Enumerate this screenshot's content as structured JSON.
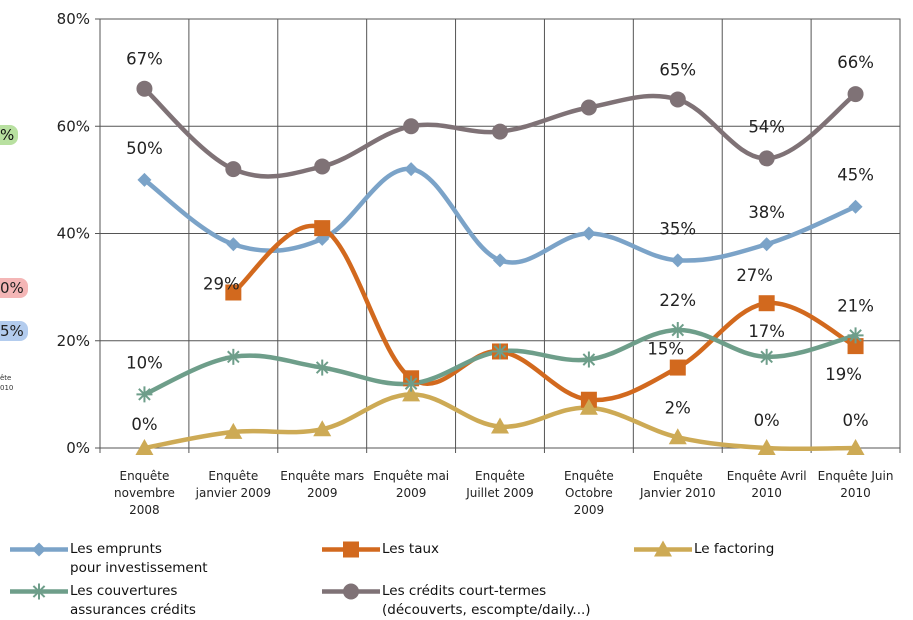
{
  "chart_data": {
    "type": "line",
    "categories": [
      [
        "Enquête",
        "novembre",
        "2008"
      ],
      [
        "Enquête",
        "janvier 2009"
      ],
      [
        "Enquête mars",
        "2009"
      ],
      [
        "Enquête mai",
        "2009"
      ],
      [
        "Enquête",
        "Juillet 2009"
      ],
      [
        "Enquête",
        "Octobre",
        "2009"
      ],
      [
        "Enquête",
        "Janvier 2010"
      ],
      [
        "Enquête Avril",
        "2010"
      ],
      [
        "Enquête Juin",
        "2010"
      ]
    ],
    "ylim": [
      0,
      80
    ],
    "yticks": [
      0,
      20,
      40,
      60,
      80
    ],
    "ytick_labels": [
      "0%",
      "20%",
      "40%",
      "60%",
      "80%"
    ],
    "grid": true,
    "smooth": true,
    "series": [
      {
        "name": [
          "Les emprunts",
          "pour investissement"
        ],
        "color": "#7BA3C8",
        "marker": "diamond",
        "values": [
          50,
          38,
          39,
          52,
          35,
          40,
          35,
          38,
          45
        ],
        "labels": [
          "50%",
          "",
          "",
          "",
          "",
          "",
          "35%",
          "38%",
          "45%"
        ]
      },
      {
        "name": [
          "Les taux"
        ],
        "color": "#D2691E",
        "marker": "square",
        "values": [
          null,
          29,
          41,
          13,
          18,
          9,
          15,
          27,
          19
        ],
        "labels": [
          "",
          "29%",
          "",
          "",
          "",
          "",
          "15%",
          "27%",
          "19%"
        ]
      },
      {
        "name": [
          "Le factoring"
        ],
        "color": "#CDAA55",
        "marker": "triangle",
        "values": [
          0,
          3,
          3.5,
          10,
          4,
          7.5,
          2,
          0,
          0
        ],
        "labels": [
          "0%",
          "",
          "",
          "",
          "",
          "",
          "2%",
          "0%",
          "0%"
        ]
      },
      {
        "name": [
          "Les couvertures",
          "assurances crédits"
        ],
        "color": "#6E9E8A",
        "marker": "star",
        "values": [
          10,
          17,
          15,
          12,
          18,
          16.5,
          22,
          17,
          21
        ],
        "labels": [
          "10%",
          "",
          "",
          "",
          "",
          "",
          "22%",
          "17%",
          "21%"
        ]
      },
      {
        "name": [
          "Les crédits court-termes",
          "(découverts, escompte/daily...)"
        ],
        "color": "#7F7276",
        "marker": "circle",
        "values": [
          67,
          52,
          52.5,
          60,
          59,
          63.5,
          65,
          54,
          66
        ],
        "labels": [
          "67%",
          "",
          "",
          "",
          "",
          "",
          "65%",
          "54%",
          "66%"
        ]
      }
    ],
    "legend_position": "bottom",
    "clipped_left_texts": [
      {
        "text": "%",
        "color": "#b8e0a0"
      },
      {
        "text": "0%",
        "color": "#f4b6b6"
      },
      {
        "text": "5%",
        "color": "#b3ccee"
      },
      {
        "text": "ête",
        "color": ""
      },
      {
        "text": "010",
        "color": ""
      }
    ]
  }
}
